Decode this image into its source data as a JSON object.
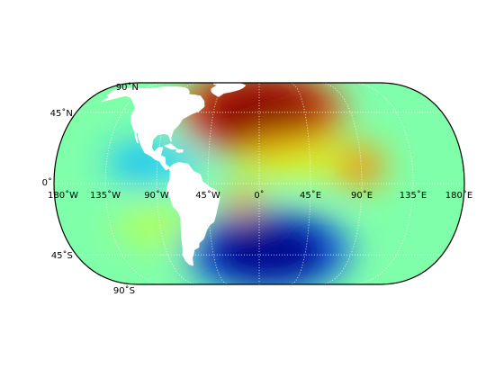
{
  "map": {
    "projection": "robinson",
    "colormap": "jet",
    "background_color": "#80ffaa",
    "continent_fill": "#ffffff",
    "continents_shown": [
      "North America",
      "South America",
      "Greenland"
    ],
    "gridline_style": "dotted",
    "gridline_color": "#ffffff",
    "parallel_labels": [
      {
        "text": "90˚N",
        "lat": 90
      },
      {
        "text": "45˚N",
        "lat": 45
      },
      {
        "text": "0˚",
        "lat": 0
      },
      {
        "text": "45˚S",
        "lat": -45
      },
      {
        "text": "90˚S",
        "lat": -90
      }
    ],
    "meridian_labels": [
      {
        "text": "180˚W",
        "lon": -180
      },
      {
        "text": "135˚W",
        "lon": -135
      },
      {
        "text": "90˚W",
        "lon": -90
      },
      {
        "text": "45˚W",
        "lon": -45
      },
      {
        "text": "0˚",
        "lon": 0
      },
      {
        "text": "45˚E",
        "lon": 45
      },
      {
        "text": "90˚E",
        "lon": 90
      },
      {
        "text": "135˚E",
        "lon": 135
      },
      {
        "text": "180˚E",
        "lon": 180
      }
    ],
    "field_anomalies": [
      {
        "lon": 2,
        "lat": 45,
        "color": "#8b0000",
        "strength": 1.0
      },
      {
        "lon": 8,
        "lat": -42,
        "color": "#00008b",
        "strength": 1.0
      },
      {
        "lon": 88,
        "lat": 10,
        "color": "#ff6600",
        "strength": 0.6
      },
      {
        "lon": -15,
        "lat": -10,
        "color": "#ff8800",
        "strength": 0.55
      },
      {
        "lon": -105,
        "lat": 12,
        "color": "#00aaff",
        "strength": 0.55
      },
      {
        "lon": -70,
        "lat": 12,
        "color": "#00ccff",
        "strength": 0.45
      },
      {
        "lon": 30,
        "lat": 15,
        "color": "#ffee00",
        "strength": 0.3
      },
      {
        "lon": -95,
        "lat": -25,
        "color": "#ccff33",
        "strength": 0.3
      }
    ]
  }
}
